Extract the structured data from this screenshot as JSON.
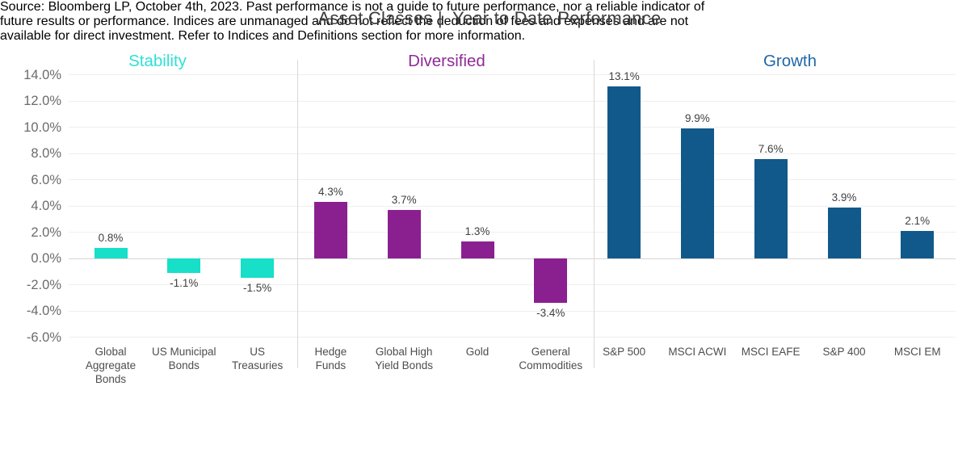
{
  "page": {
    "footer_lines": [
      "Source: Bloomberg LP, October 4th, 2023. Past performance is not a guide to future performance, nor a reliable indicator of",
      "future results or performance. Indices are unmanaged and do not reflect the deduction of fees and expenses and are not",
      "available for direct investment. Refer to Indices and Definitions section for more information."
    ]
  },
  "chart_data": {
    "type": "bar",
    "title": "Asset Classes |  Year to Date Performance",
    "xlabel": "",
    "ylabel": "",
    "ylim": [
      -6,
      14
    ],
    "ytick_step": 2,
    "ytick_labels": [
      "14.0%",
      "12.0%",
      "10.0%",
      "8.0%",
      "6.0%",
      "4.0%",
      "2.0%",
      "0.0%",
      "-2.0%",
      "-4.0%",
      "-6.0%"
    ],
    "grid": true,
    "legend_position": "none",
    "groups": [
      {
        "name": "Stability",
        "header_color": "#2ee1d6",
        "bar_color": "#17dfc8",
        "categories": [
          "Global Aggregate Bonds",
          "US Municipal Bonds",
          "US Treasuries"
        ],
        "categories_wrapped": [
          "Global\nAggregate\nBonds",
          "US Municipal\nBonds",
          "US\nTreasuries"
        ],
        "values": [
          0.8,
          -1.1,
          -1.5
        ],
        "value_labels": [
          "0.8%",
          "-1.1%",
          "-1.5%"
        ]
      },
      {
        "name": "Diversified",
        "header_color": "#8f2b96",
        "bar_color": "#8a2090",
        "categories": [
          "Hedge Funds",
          "Global High Yield Bonds",
          "Gold",
          "General Commodities"
        ],
        "categories_wrapped": [
          "Hedge\nFunds",
          "Global High\nYield Bonds",
          "Gold",
          "General\nCommodities"
        ],
        "values": [
          4.3,
          3.7,
          1.3,
          -3.4
        ],
        "value_labels": [
          "4.3%",
          "3.7%",
          "1.3%",
          "-3.4%"
        ]
      },
      {
        "name": "Growth",
        "header_color": "#2068a8",
        "bar_color": "#11598b",
        "categories": [
          "S&P 500",
          "MSCI ACWI",
          "MSCI EAFE",
          "S&P 400",
          "MSCI EM"
        ],
        "categories_wrapped": [
          "S&P 500",
          "MSCI ACWI",
          "MSCI EAFE",
          "S&P 400",
          "MSCI EM"
        ],
        "values": [
          13.1,
          9.9,
          7.6,
          3.9,
          2.1
        ],
        "value_labels": [
          "13.1%",
          "9.9%",
          "7.6%",
          "3.9%",
          "2.1%"
        ]
      }
    ],
    "source_note": "Source: Bloomberg LP, October 4th, 2023. Past performance is not a guide to future performance, nor a reliable indicator of future results or performance. Indices are unmanaged and do not reflect the deduction of fees and expenses and are not available for direct investment. Refer to Indices and Definitions section for more information."
  }
}
